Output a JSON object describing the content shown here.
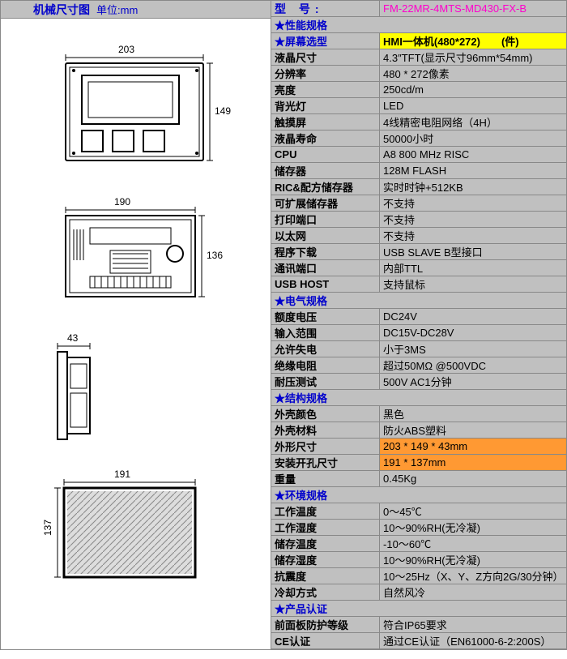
{
  "left": {
    "title": "机械尺寸图",
    "unit": "单位:mm",
    "dims": {
      "front_w": "203",
      "front_h": "149",
      "back_w": "190",
      "back_h": "136",
      "side_w": "43",
      "cut_w": "191",
      "cut_h": "137"
    }
  },
  "model": {
    "label": "型 号:",
    "value": "FM-22MR-4MTS-MD430-FX-B"
  },
  "sections": {
    "perf": "★性能规格",
    "screen": {
      "label": "★屏幕选型",
      "value": "HMI一体机(480*272)　　(件)"
    },
    "elec": "★电气规格",
    "struct": "★结构规格",
    "env": "★环境规格",
    "cert": "★产品认证"
  },
  "rows": [
    {
      "k": "液晶尺寸",
      "v": "4.3″TFT(显示尺寸96mm*54mm)"
    },
    {
      "k": "分辨率",
      "v": "480 * 272像素"
    },
    {
      "k": "亮度",
      "v": "250cd/m"
    },
    {
      "k": "背光灯",
      "v": "LED"
    },
    {
      "k": "触摸屏",
      "v": "4线精密电阻网络（4H）"
    },
    {
      "k": "液晶寿命",
      "v": "50000小时"
    },
    {
      "k": "CPU",
      "v": "A8 800 MHz RISC"
    },
    {
      "k": "储存器",
      "v": "128M FLASH"
    },
    {
      "k": "RIC&配方储存器",
      "v": "实时时钟+512KB"
    },
    {
      "k": "可扩展储存器",
      "v": "不支持"
    },
    {
      "k": "打印端口",
      "v": "不支持"
    },
    {
      "k": "以太网",
      "v": "不支持"
    },
    {
      "k": "程序下载",
      "v": "USB SLAVE B型接口"
    },
    {
      "k": "通讯端口",
      "v": "内部TTL"
    },
    {
      "k": "USB HOST",
      "v": "支持鼠标"
    }
  ],
  "elec_rows": [
    {
      "k": "额度电压",
      "v": "DC24V"
    },
    {
      "k": "输入范围",
      "v": "DC15V-DC28V"
    },
    {
      "k": "允许失电",
      "v": "小于3MS"
    },
    {
      "k": "绝缘电阻",
      "v": "超过50MΩ @500VDC"
    },
    {
      "k": "耐压测试",
      "v": "500V AC1分钟"
    }
  ],
  "struct_rows": [
    {
      "k": "外壳颜色",
      "v": "黑色"
    },
    {
      "k": "外壳材料",
      "v": "防火ABS塑料"
    },
    {
      "k": "外形尺寸",
      "v": "203 * 149 * 43mm",
      "hl": "o"
    },
    {
      "k": "安装开孔尺寸",
      "v": "191 * 137mm",
      "hl": "o"
    },
    {
      "k": "重量",
      "v": "0.45Kg"
    }
  ],
  "env_rows": [
    {
      "k": "工作温度",
      "v": "0～45℃"
    },
    {
      "k": "工作湿度",
      "v": "10～90%RH(无冷凝)"
    },
    {
      "k": "储存温度",
      "v": "-10～60℃"
    },
    {
      "k": "储存湿度",
      "v": "10～90%RH(无冷凝)"
    },
    {
      "k": "抗震度",
      "v": "10～25Hz（X、Y、Z方向2G/30分钟）"
    },
    {
      "k": "冷却方式",
      "v": "自然风冷"
    }
  ],
  "cert_rows": [
    {
      "k": "前面板防护等级",
      "v": "符合IP65要求"
    },
    {
      "k": "CE认证",
      "v": "通过CE认证（EN61000-6-2:200S）"
    }
  ],
  "style": {
    "hdr_bg": "#c0c0c0",
    "blue": "#0000cc",
    "magenta": "#ff00cc",
    "yellow": "#ffff00",
    "orange": "#ff9933",
    "border": "#888888"
  }
}
